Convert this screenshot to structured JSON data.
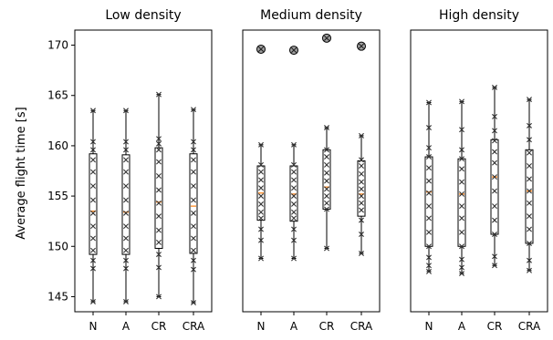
{
  "chart_data": {
    "type": "box",
    "ylabel": "Average flight time [s]",
    "ylim": [
      143.5,
      171.5
    ],
    "yticks": [
      145,
      150,
      155,
      160,
      165,
      170
    ],
    "categories": [
      "N",
      "A",
      "CR",
      "CRA"
    ],
    "panels": [
      {
        "title": "Low density",
        "boxes": [
          {
            "category": "N",
            "whisker_low": 144.5,
            "q1": 149.2,
            "median": 153.5,
            "q3": 159.2,
            "whisker_high": 163.5,
            "points": [
              144.5,
              147.8,
              148.6,
              149.6,
              150.8,
              152.0,
              153.3,
              154.6,
              156.0,
              157.4,
              158.6,
              159.6,
              160.4,
              163.5
            ],
            "outliers": []
          },
          {
            "category": "A",
            "whisker_low": 144.5,
            "q1": 149.2,
            "median": 153.4,
            "q3": 159.1,
            "whisker_high": 163.5,
            "points": [
              144.5,
              147.8,
              148.6,
              149.6,
              150.8,
              152.0,
              153.3,
              154.6,
              156.0,
              157.4,
              158.6,
              159.6,
              160.4,
              163.5
            ],
            "outliers": []
          },
          {
            "category": "CR",
            "whisker_low": 145.0,
            "q1": 149.8,
            "median": 154.4,
            "q3": 159.8,
            "whisker_high": 165.1,
            "points": [
              145.0,
              147.9,
              149.2,
              150.4,
              151.6,
              153.0,
              154.3,
              155.6,
              157.0,
              158.4,
              159.6,
              160.2,
              160.7,
              165.1
            ],
            "outliers": []
          },
          {
            "category": "CRA",
            "whisker_low": 144.4,
            "q1": 149.3,
            "median": 154.0,
            "q3": 159.2,
            "whisker_high": 163.6,
            "points": [
              144.4,
              147.7,
              148.6,
              149.6,
              150.8,
              152.0,
              153.3,
              154.6,
              156.0,
              157.4,
              158.6,
              159.6,
              160.4,
              163.6
            ],
            "outliers": []
          }
        ]
      },
      {
        "title": "Medium density",
        "boxes": [
          {
            "category": "N",
            "whisker_low": 148.8,
            "q1": 152.6,
            "median": 155.3,
            "q3": 158.0,
            "whisker_high": 160.1,
            "points": [
              148.8,
              150.6,
              151.7,
              152.8,
              153.4,
              154.2,
              155.0,
              155.8,
              156.6,
              157.4,
              158.1,
              160.1
            ],
            "outliers": [
              169.6
            ]
          },
          {
            "category": "A",
            "whisker_low": 148.8,
            "q1": 152.5,
            "median": 155.2,
            "q3": 158.0,
            "whisker_high": 160.1,
            "points": [
              148.8,
              150.6,
              151.7,
              152.8,
              153.4,
              154.2,
              155.0,
              155.8,
              156.6,
              157.4,
              158.1,
              160.1
            ],
            "outliers": [
              169.5
            ]
          },
          {
            "category": "CR",
            "whisker_low": 149.8,
            "q1": 153.7,
            "median": 155.9,
            "q3": 159.6,
            "whisker_high": 161.8,
            "points": [
              149.8,
              153.7,
              154.3,
              155.0,
              155.7,
              156.5,
              157.3,
              158.1,
              158.9,
              159.6,
              161.8
            ],
            "outliers": [
              170.7
            ]
          },
          {
            "category": "CRA",
            "whisker_low": 149.3,
            "q1": 153.0,
            "median": 155.2,
            "q3": 158.5,
            "whisker_high": 161.0,
            "points": [
              149.3,
              151.2,
              152.6,
              153.6,
              154.3,
              155.0,
              155.7,
              156.4,
              157.2,
              158.0,
              158.6,
              161.0
            ],
            "outliers": [
              169.9
            ]
          }
        ]
      },
      {
        "title": "High density",
        "boxes": [
          {
            "category": "N",
            "whisker_low": 147.5,
            "q1": 150.0,
            "median": 155.4,
            "q3": 158.9,
            "whisker_high": 164.3,
            "points": [
              147.5,
              148.1,
              148.9,
              150.0,
              151.4,
              152.8,
              154.0,
              155.3,
              156.5,
              157.8,
              158.9,
              159.8,
              161.8,
              164.3
            ],
            "outliers": []
          },
          {
            "category": "A",
            "whisker_low": 147.3,
            "q1": 150.0,
            "median": 155.2,
            "q3": 158.7,
            "whisker_high": 164.4,
            "points": [
              147.3,
              147.9,
              148.7,
              150.0,
              151.4,
              152.8,
              154.0,
              155.2,
              156.4,
              157.7,
              158.7,
              159.6,
              161.6,
              164.4
            ],
            "outliers": []
          },
          {
            "category": "CR",
            "whisker_low": 148.1,
            "q1": 151.2,
            "median": 156.9,
            "q3": 160.6,
            "whisker_high": 165.8,
            "points": [
              148.1,
              149.0,
              151.2,
              152.6,
              154.0,
              155.5,
              156.9,
              158.3,
              159.4,
              160.5,
              161.5,
              162.9,
              165.8
            ],
            "outliers": []
          },
          {
            "category": "CRA",
            "whisker_low": 147.6,
            "q1": 150.3,
            "median": 155.5,
            "q3": 159.6,
            "whisker_high": 164.6,
            "points": [
              147.6,
              148.6,
              150.3,
              151.7,
              153.0,
              154.3,
              155.5,
              156.7,
              158.0,
              159.3,
              160.6,
              162.0,
              164.6
            ],
            "outliers": []
          }
        ]
      }
    ],
    "colors": {
      "median": "#ff7f0e",
      "box": "#000000",
      "point": "#333333",
      "outlier_fill": "#a0a0a0"
    },
    "grid": false
  }
}
